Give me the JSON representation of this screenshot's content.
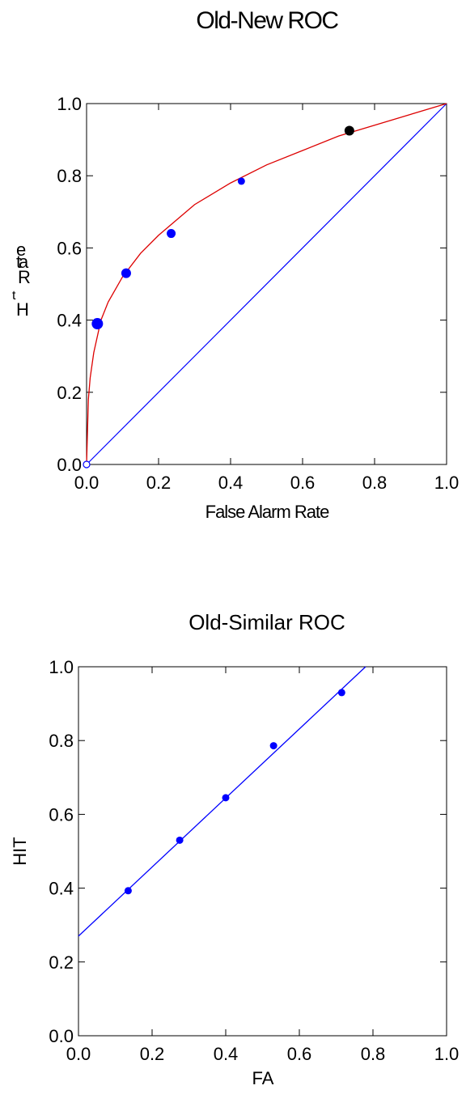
{
  "chart_data": [
    {
      "type": "scatter",
      "title": "Old-New ROC",
      "xlabel": "False Alarm Rate",
      "ylabel": "Hit Rate",
      "xlim": [
        0,
        1
      ],
      "ylim": [
        0,
        1
      ],
      "xticks": [
        "0.0",
        "0.2",
        "0.4",
        "0.6",
        "0.8",
        "1.0"
      ],
      "yticks": [
        "0.0",
        "0.2",
        "0.4",
        "0.6",
        "0.8",
        "1.0"
      ],
      "grid": false,
      "colors": {
        "points": "#0000ff",
        "highlight": "#000000",
        "curve": "#dd0000",
        "chance": "#0000ff"
      },
      "points": [
        {
          "x": 0.03,
          "y": 0.39
        },
        {
          "x": 0.11,
          "y": 0.53
        },
        {
          "x": 0.235,
          "y": 0.64
        },
        {
          "x": 0.43,
          "y": 0.785
        },
        {
          "x": 0.73,
          "y": 0.925
        }
      ],
      "origin_point": {
        "x": 0.0,
        "y": 0.0
      },
      "fit_curve": {
        "x": [
          0,
          0.005,
          0.01,
          0.02,
          0.04,
          0.06,
          0.1,
          0.15,
          0.2,
          0.3,
          0.4,
          0.5,
          0.6,
          0.7,
          0.8,
          0.9,
          1.0
        ],
        "y": [
          0,
          0.18,
          0.24,
          0.31,
          0.4,
          0.45,
          0.52,
          0.585,
          0.635,
          0.72,
          0.78,
          0.83,
          0.87,
          0.91,
          0.94,
          0.97,
          1.0
        ]
      },
      "chance_line": {
        "x": [
          0,
          1
        ],
        "y": [
          0,
          1
        ]
      }
    },
    {
      "type": "scatter",
      "title": "Old-Similar ROC",
      "xlabel": "FA",
      "ylabel": "HIT",
      "xlim": [
        0,
        1
      ],
      "ylim": [
        0,
        1
      ],
      "xticks": [
        "0.0",
        "0.2",
        "0.4",
        "0.6",
        "0.8",
        "1.0"
      ],
      "yticks": [
        "0.0",
        "0.2",
        "0.4",
        "0.6",
        "0.8",
        "1.0"
      ],
      "grid": false,
      "colors": {
        "points": "#0000ff",
        "line": "#0000ff"
      },
      "points": [
        {
          "x": 0.135,
          "y": 0.393
        },
        {
          "x": 0.275,
          "y": 0.53
        },
        {
          "x": 0.4,
          "y": 0.645
        },
        {
          "x": 0.53,
          "y": 0.786
        },
        {
          "x": 0.715,
          "y": 0.93
        }
      ],
      "fit_line": {
        "x": [
          0,
          0.78
        ],
        "y": [
          0.27,
          1.0
        ]
      }
    }
  ]
}
